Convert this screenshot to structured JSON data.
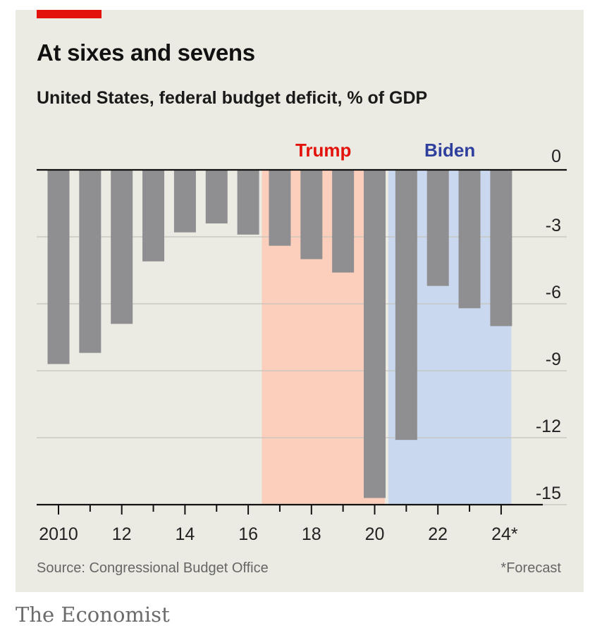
{
  "title": "At sixes and sevens",
  "subtitle": "United States, federal budget deficit, % of GDP",
  "source": "Source: Congressional Budget Office",
  "footnote": "*Forecast",
  "brand": "The Economist",
  "colors": {
    "accent_red": "#e3120b",
    "bar": "#8f8f91",
    "trump_band": "#fccfbc",
    "biden_band": "#c9d8ef",
    "trump_label": "#e3120b",
    "biden_label": "#2f3f9e",
    "panel_bg": "#ecebe3"
  },
  "chart_data": {
    "type": "bar",
    "title": "At sixes and sevens",
    "subtitle": "United States, federal budget deficit, % of GDP",
    "x": [
      2010,
      2011,
      2012,
      2013,
      2014,
      2015,
      2016,
      2017,
      2018,
      2019,
      2020,
      2021,
      2022,
      2023,
      2024
    ],
    "values": [
      -8.7,
      -8.2,
      -6.9,
      -4.1,
      -2.8,
      -2.4,
      -2.9,
      -3.4,
      -4.0,
      -4.6,
      -14.7,
      -12.1,
      -5.2,
      -6.2,
      -7.0
    ],
    "x_tick_labels": [
      "2010",
      "12",
      "14",
      "16",
      "18",
      "20",
      "22",
      "24*"
    ],
    "y_ticks": [
      0,
      -3,
      -6,
      -9,
      -12,
      -15
    ],
    "y_tick_labels": [
      "0",
      "-3",
      "-6",
      "-9",
      "-12",
      "-15"
    ],
    "ylim": [
      -15,
      0
    ],
    "y_axis_position": "right",
    "grid": true,
    "shaded_periods": [
      {
        "label": "Trump",
        "start": 2017,
        "end": 2020
      },
      {
        "label": "Biden",
        "start": 2021,
        "end": 2024
      }
    ],
    "forecast_note": "*Forecast"
  }
}
